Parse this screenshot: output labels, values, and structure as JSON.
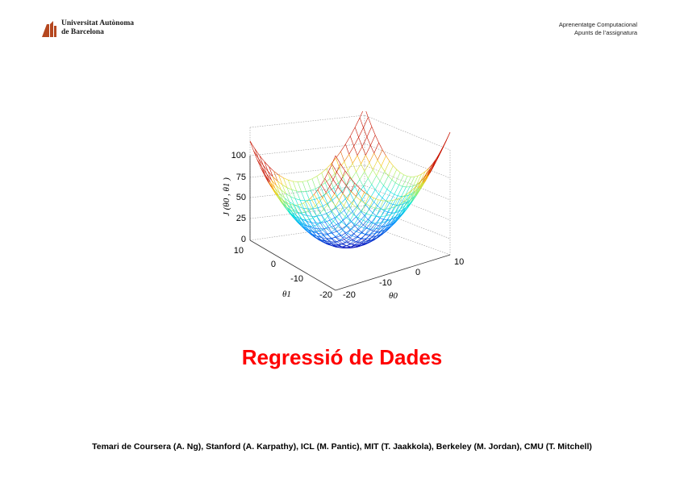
{
  "header": {
    "logo_line1": "Universitat Autònoma",
    "logo_line2": "de Barcelona",
    "course_line1": "Aprenentatge Computacional",
    "course_line2": "Apunts de l’assignatura"
  },
  "figure": {
    "zlabel": "J (θ0 , θ1 )",
    "xlabel": "θ1",
    "ylabel": "θ0",
    "z_ticks": [
      "0",
      "25",
      "50",
      "75",
      "100"
    ],
    "theta1_ticks": [
      "10",
      "0",
      "-10",
      "-20"
    ],
    "theta0_ticks": [
      "-20",
      "-10",
      "0",
      "10"
    ]
  },
  "title": "Regressió de Dades",
  "credits": "Temari de Coursera (A. Ng), Stanford (A. Karpathy), ICL (M. Pantic), MIT (T. Jaakkola), Berkeley (M. Jordan), CMU (T. Mitchell)",
  "colors": {
    "title": "#ff0000",
    "logo_accent": "#b5471f"
  }
}
